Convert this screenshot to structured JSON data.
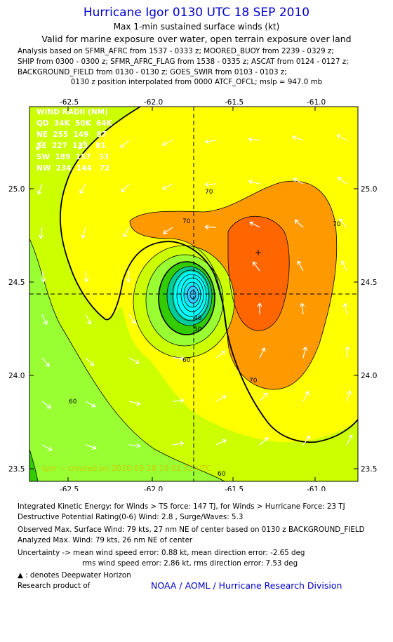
{
  "header": {
    "title": "Hurricane Igor 0130 UTC 18 SEP 2010",
    "subtitle1": "Max 1-min sustained surface winds (kt)",
    "subtitle2": "Valid for marine exposure over water, open terrain exposure over land",
    "analysis_lines": [
      "Analysis based on SFMR_AFRC from 1537 - 0333 z; MOORED_BUOY from 2239 - 0329 z;",
      "SHIP from 0300 - 0300 z; SFMR_AFRC_FLAG from 1538 - 0335 z; ASCAT from 0124 - 0127 z;",
      "BACKGROUND_FIELD from 0130 - 0130 z; GOES_SWIR from 0103 - 0103 z;"
    ],
    "interpolation": "0130 z position interpolated from 0000 ATCF_OFCL; mslp = 947.0 mb"
  },
  "wind_radii": {
    "title": "WIND RADII (NM)",
    "rows": [
      "QD  34K  50K  64K",
      "NE  255  149   87",
      "SE  227  133   81",
      "SW  189  157   33",
      "NW  234  144   72"
    ]
  },
  "watermark": "Igor -- created on 2010-09-18  10:01:52 UTC",
  "chart_data": {
    "type": "heatmap",
    "title": "Hurricane Igor 0130 UTC 18 SEP 2010",
    "variable": "Max 1-min sustained surface winds (kt)",
    "xaxis_ticks": [
      "-62.5",
      "-62.0",
      "-61.5",
      "-61.0"
    ],
    "yaxis_ticks": [
      "25.0",
      "24.5",
      "24.0",
      "23.5"
    ],
    "xlim": [
      -62.75,
      -60.8
    ],
    "ylim": [
      23.45,
      25.45
    ],
    "center": {
      "lon": -61.75,
      "lat": 24.43
    },
    "max_wind_marker": {
      "lon": -61.35,
      "lat": 24.65
    },
    "contour_labels": [
      "70",
      "70",
      "70",
      "70",
      "60",
      "60",
      "60",
      "50",
      "40"
    ],
    "colors": {
      "cat_low": "#33cc00",
      "cat_mid": "#99ff33",
      "cat_yellowgreen": "#ccff00",
      "cat_yellow": "#ffff00",
      "cat_orange": "#ff9900",
      "cat_darkorange": "#ff6600",
      "core_cyan": "#00ffff",
      "core_teal": "#00cc99"
    }
  },
  "footer": {
    "ike": "Integrated Kinetic Energy:  for Winds > TS force: 147 TJ,  for Winds > Hurricane Force: 23 TJ",
    "dpr": "Destructive Potential Rating(0-6)   Wind: 2.8 , Surge/Waves: 5.3",
    "obs_max": "Observed Max. Surface Wind: 79 kts, 27 nm NE of center based on 0130 z BACKGROUND_FIELD",
    "ana_max": "Analyzed Max. Wind: 79 kts, 26 nm NE of center",
    "uncert1": "Uncertainty -> mean wind speed error: 0.88 kt,   mean direction error:  -2.65 deg",
    "uncert2": "rms wind speed error: 2.86 kt,   rms direction error: 7.53 deg",
    "dwh": " : denotes Deepwater Horizon",
    "research": "Research product of",
    "noaa": "NOAA / AOML / Hurricane Research Division"
  }
}
